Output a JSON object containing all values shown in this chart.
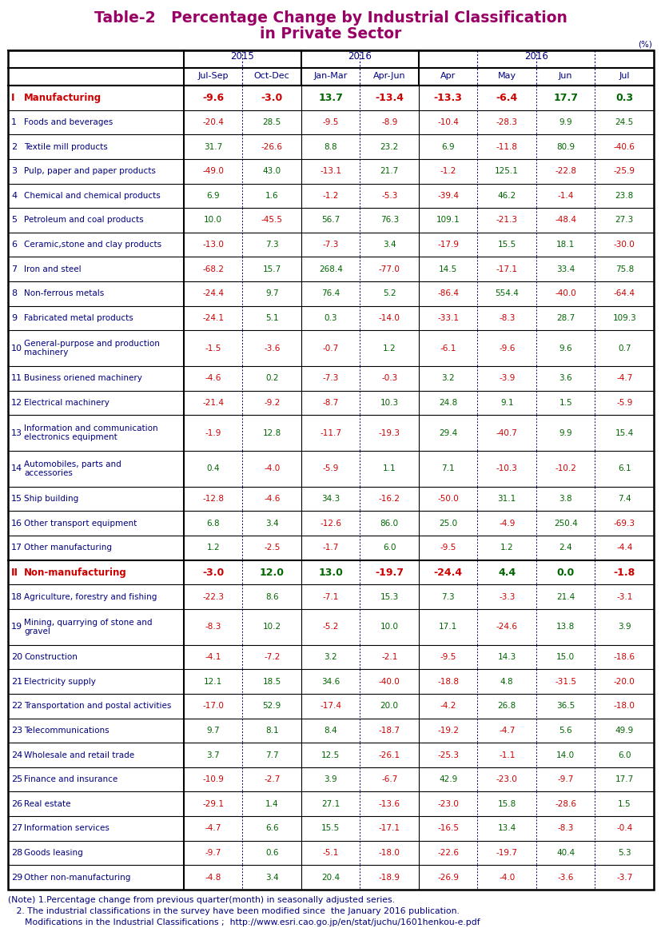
{
  "title_line1": "Table-2   Percentage Change by Industrial Classification",
  "title_line2": "in Private Sector",
  "title_color": "#990066",
  "unit_label": "(%)",
  "header_color": "#000080",
  "section_label_color": "#cc0000",
  "data_positive_color": "#006600",
  "data_negative_color": "#cc0000",
  "row_label_color": "#000080",
  "rows": [
    {
      "num": "I",
      "label": "Manufacturing",
      "section": true,
      "vals": [
        -9.6,
        -3.0,
        13.7,
        -13.4,
        -13.3,
        -6.4,
        17.7,
        0.3
      ]
    },
    {
      "num": "1",
      "label": "Foods and beverages",
      "section": false,
      "vals": [
        -20.4,
        28.5,
        -9.5,
        -8.9,
        -10.4,
        -28.3,
        9.9,
        24.5
      ]
    },
    {
      "num": "2",
      "label": "Textile mill products",
      "section": false,
      "vals": [
        31.7,
        -26.6,
        8.8,
        23.2,
        6.9,
        -11.8,
        80.9,
        -40.6
      ]
    },
    {
      "num": "3",
      "label": "Pulp, paper and paper products",
      "section": false,
      "vals": [
        -49.0,
        43.0,
        -13.1,
        21.7,
        -1.2,
        125.1,
        -22.8,
        -25.9
      ]
    },
    {
      "num": "4",
      "label": "Chemical and chemical products",
      "section": false,
      "vals": [
        6.9,
        1.6,
        -1.2,
        -5.3,
        -39.4,
        46.2,
        -1.4,
        23.8
      ]
    },
    {
      "num": "5",
      "label": "Petroleum and coal products",
      "section": false,
      "vals": [
        10.0,
        -45.5,
        56.7,
        76.3,
        109.1,
        -21.3,
        -48.4,
        27.3
      ]
    },
    {
      "num": "6",
      "label": "Ceramic,stone and clay products",
      "section": false,
      "vals": [
        -13.0,
        7.3,
        -7.3,
        3.4,
        -17.9,
        15.5,
        18.1,
        -30.0
      ]
    },
    {
      "num": "7",
      "label": "Iron and steel",
      "section": false,
      "vals": [
        -68.2,
        15.7,
        268.4,
        -77.0,
        14.5,
        -17.1,
        33.4,
        75.8
      ]
    },
    {
      "num": "8",
      "label": "Non-ferrous metals",
      "section": false,
      "vals": [
        -24.4,
        9.7,
        76.4,
        5.2,
        -86.4,
        554.4,
        -40.0,
        -64.4
      ]
    },
    {
      "num": "9",
      "label": "Fabricated metal products",
      "section": false,
      "vals": [
        -24.1,
        5.1,
        0.3,
        -14.0,
        -33.1,
        -8.3,
        28.7,
        109.3
      ]
    },
    {
      "num": "10",
      "label": "General-purpose and production\nmachinery",
      "section": false,
      "vals": [
        -1.5,
        -3.6,
        -0.7,
        1.2,
        -6.1,
        -9.6,
        9.6,
        0.7
      ]
    },
    {
      "num": "11",
      "label": "Business oriened machinery",
      "section": false,
      "vals": [
        -4.6,
        0.2,
        -7.3,
        -0.3,
        3.2,
        -3.9,
        3.6,
        -4.7
      ]
    },
    {
      "num": "12",
      "label": "Electrical machinery",
      "section": false,
      "vals": [
        -21.4,
        -9.2,
        -8.7,
        10.3,
        24.8,
        9.1,
        1.5,
        -5.9
      ]
    },
    {
      "num": "13",
      "label": "Information and communication\nelectronics equipment",
      "section": false,
      "vals": [
        -1.9,
        12.8,
        -11.7,
        -19.3,
        29.4,
        -40.7,
        9.9,
        15.4
      ]
    },
    {
      "num": "14",
      "label": "Automobiles, parts and\naccessories",
      "section": false,
      "vals": [
        0.4,
        -4.0,
        -5.9,
        1.1,
        7.1,
        -10.3,
        -10.2,
        6.1
      ]
    },
    {
      "num": "15",
      "label": "Ship building",
      "section": false,
      "vals": [
        -12.8,
        -4.6,
        34.3,
        -16.2,
        -50.0,
        31.1,
        3.8,
        7.4
      ]
    },
    {
      "num": "16",
      "label": "Other transport equipment",
      "section": false,
      "vals": [
        6.8,
        3.4,
        -12.6,
        86.0,
        25.0,
        -4.9,
        250.4,
        -69.3
      ]
    },
    {
      "num": "17",
      "label": "Other manufacturing",
      "section": false,
      "vals": [
        1.2,
        -2.5,
        -1.7,
        6.0,
        -9.5,
        1.2,
        2.4,
        -4.4
      ]
    },
    {
      "num": "II",
      "label": "Non-manufacturing",
      "section": true,
      "vals": [
        -3.0,
        12.0,
        13.0,
        -19.7,
        -24.4,
        4.4,
        0.0,
        -1.8
      ]
    },
    {
      "num": "18",
      "label": "Agriculture, forestry and fishing",
      "section": false,
      "vals": [
        -22.3,
        8.6,
        -7.1,
        15.3,
        7.3,
        -3.3,
        21.4,
        -3.1
      ]
    },
    {
      "num": "19",
      "label": "Mining, quarrying of stone and\ngravel",
      "section": false,
      "vals": [
        -8.3,
        10.2,
        -5.2,
        10.0,
        17.1,
        -24.6,
        13.8,
        3.9
      ]
    },
    {
      "num": "20",
      "label": "Construction",
      "section": false,
      "vals": [
        -4.1,
        -7.2,
        3.2,
        -2.1,
        -9.5,
        14.3,
        15.0,
        -18.6
      ]
    },
    {
      "num": "21",
      "label": "Electricity supply",
      "section": false,
      "vals": [
        12.1,
        18.5,
        34.6,
        -40.0,
        -18.8,
        4.8,
        -31.5,
        -20.0
      ]
    },
    {
      "num": "22",
      "label": "Transportation and postal activities",
      "section": false,
      "vals": [
        -17.0,
        52.9,
        -17.4,
        20.0,
        -4.2,
        26.8,
        36.5,
        -18.0
      ]
    },
    {
      "num": "23",
      "label": "Telecommunications",
      "section": false,
      "vals": [
        9.7,
        8.1,
        8.4,
        -18.7,
        -19.2,
        -4.7,
        5.6,
        49.9
      ]
    },
    {
      "num": "24",
      "label": "Wholesale and retail trade",
      "section": false,
      "vals": [
        3.7,
        7.7,
        12.5,
        -26.1,
        -25.3,
        -1.1,
        14.0,
        6.0
      ]
    },
    {
      "num": "25",
      "label": "Finance and insurance",
      "section": false,
      "vals": [
        -10.9,
        -2.7,
        3.9,
        -6.7,
        42.9,
        -23.0,
        -9.7,
        17.7
      ]
    },
    {
      "num": "26",
      "label": "Real estate",
      "section": false,
      "vals": [
        -29.1,
        1.4,
        27.1,
        -13.6,
        -23.0,
        15.8,
        -28.6,
        1.5
      ]
    },
    {
      "num": "27",
      "label": "Information services",
      "section": false,
      "vals": [
        -4.7,
        6.6,
        15.5,
        -17.1,
        -16.5,
        13.4,
        -8.3,
        -0.4
      ]
    },
    {
      "num": "28",
      "label": "Goods leasing",
      "section": false,
      "vals": [
        -9.7,
        0.6,
        -5.1,
        -18.0,
        -22.6,
        -19.7,
        40.4,
        5.3
      ]
    },
    {
      "num": "29",
      "label": "Other non-manufacturing",
      "section": false,
      "vals": [
        -4.8,
        3.4,
        20.4,
        -18.9,
        -26.9,
        -4.0,
        -3.6,
        -3.7
      ]
    }
  ],
  "note_lines": [
    "(Note) 1.Percentage change from previous quarter(month) in seasonally adjusted series.",
    "   2. The industrial classifications in the survey have been modified since  the January 2016 publication.",
    "      Modifications in the Industrial Classifications ;  http://www.esri.cao.go.jp/en/stat/juchu/1601henkou-e.pdf"
  ],
  "note_color": "#000080",
  "bg_color": "#ffffff",
  "border_color": "#000000",
  "dotted_border_color": "#000080",
  "group_labels": [
    "2015",
    "2016",
    "2016"
  ],
  "sub_labels": [
    "Jul-Sep",
    "Oct-Dec",
    "Jan-Mar",
    "Apr-Jun",
    "Apr",
    "May",
    "Jun",
    "Jul"
  ]
}
